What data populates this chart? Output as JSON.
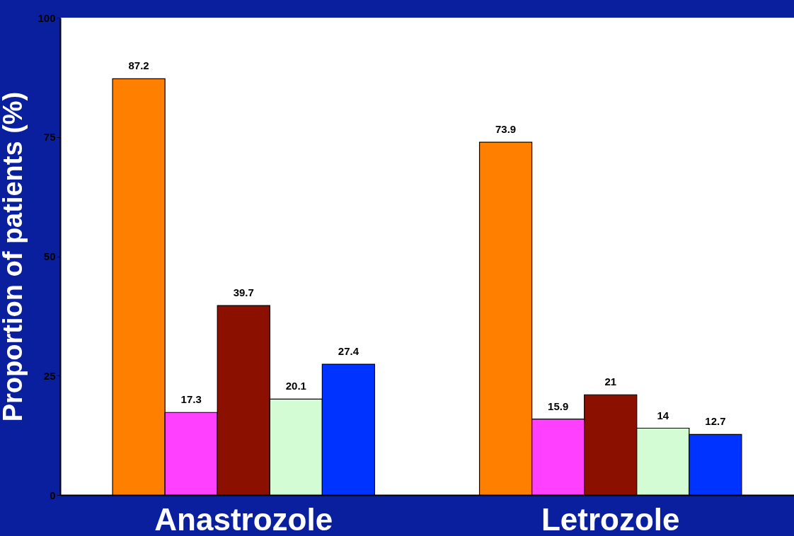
{
  "chart_data": {
    "type": "bar",
    "ylabel": "Proportion of patients (%)",
    "categories": [
      "Anastrozole",
      "Letrozole"
    ],
    "series": [
      {
        "color": "#ff7f00",
        "values": [
          87.2,
          73.9
        ]
      },
      {
        "color": "#ff40ff",
        "values": [
          17.3,
          15.9
        ]
      },
      {
        "color": "#8b1000",
        "values": [
          39.7,
          21
        ]
      },
      {
        "color": "#d4fcd4",
        "values": [
          20.1,
          14
        ]
      },
      {
        "color": "#0033ff",
        "values": [
          27.4,
          12.7
        ]
      }
    ],
    "ylim": [
      0,
      100
    ],
    "yticks": [
      0,
      25,
      50,
      75,
      100
    ],
    "data_labels": true,
    "grid": false,
    "legend": false
  }
}
